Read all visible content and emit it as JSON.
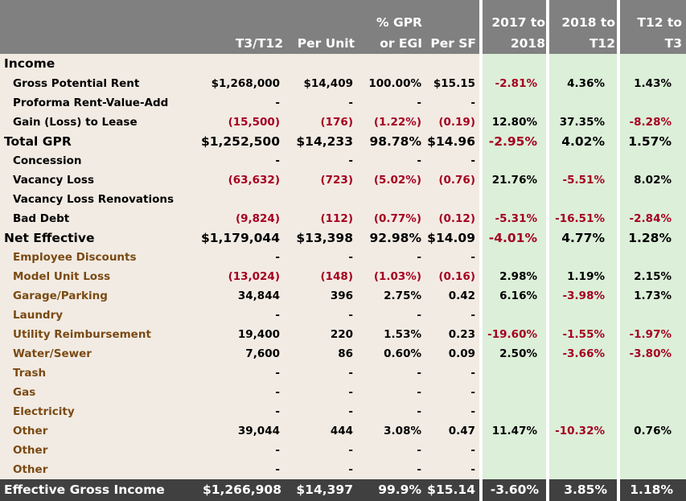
{
  "headers": {
    "col1": "T3/T12",
    "col2": "Per Unit",
    "col3_line1": "% GPR",
    "col3_line2": "or EGI",
    "col4": "Per SF",
    "col5_line1": "2017 to",
    "col5_line2": "2018",
    "col6_line1": "2018 to",
    "col6_line2": "T12",
    "col7_line1": "T12 to",
    "col7_line2": "T3"
  },
  "rows": [
    {
      "label": "Income",
      "values": [
        "",
        "",
        "",
        "",
        "",
        "",
        ""
      ]
    },
    {
      "label": "Gross Potential Rent",
      "values": [
        "$1,268,000",
        "$14,409",
        "100.00%",
        "$15.15",
        "-2.81%",
        "4.36%",
        "1.43%"
      ]
    },
    {
      "label": "Proforma Rent-Value-Add",
      "values": [
        "-",
        "-",
        "-",
        "-",
        "",
        "",
        ""
      ]
    },
    {
      "label": "Gain (Loss) to Lease",
      "values": [
        "(15,500)",
        "(176)",
        "(1.22%)",
        "(0.19)",
        "12.80%",
        "37.35%",
        "-8.28%"
      ]
    },
    {
      "label": "Total GPR",
      "values": [
        "$1,252,500",
        "$14,233",
        "98.78%",
        "$14.96",
        "-2.95%",
        "4.02%",
        "1.57%"
      ]
    },
    {
      "label": "Concession",
      "values": [
        "-",
        "-",
        "-",
        "-",
        "",
        "",
        ""
      ]
    },
    {
      "label": "Vacancy Loss",
      "values": [
        "(63,632)",
        "(723)",
        "(5.02%)",
        "(0.76)",
        "21.76%",
        "-5.51%",
        "8.02%"
      ]
    },
    {
      "label": "Vacancy Loss Renovations",
      "values": [
        "",
        "",
        "",
        "",
        "",
        "",
        ""
      ]
    },
    {
      "label": "Bad Debt",
      "values": [
        "(9,824)",
        "(112)",
        "(0.77%)",
        "(0.12)",
        "-5.31%",
        "-16.51%",
        "-2.84%"
      ]
    },
    {
      "label": "Net Effective",
      "values": [
        "$1,179,044",
        "$13,398",
        "92.98%",
        "$14.09",
        "-4.01%",
        "4.77%",
        "1.28%"
      ]
    },
    {
      "label": "Employee Discounts",
      "values": [
        "-",
        "-",
        "-",
        "-",
        "",
        "",
        ""
      ]
    },
    {
      "label": "Model Unit Loss",
      "values": [
        "(13,024)",
        "(148)",
        "(1.03%)",
        "(0.16)",
        "2.98%",
        "1.19%",
        "2.15%"
      ]
    },
    {
      "label": "Garage/Parking",
      "values": [
        "34,844",
        "396",
        "2.75%",
        "0.42",
        "6.16%",
        "-3.98%",
        "1.73%"
      ]
    },
    {
      "label": "Laundry",
      "values": [
        "-",
        "-",
        "-",
        "-",
        "",
        "",
        ""
      ]
    },
    {
      "label": "Utility Reimbursement",
      "values": [
        "19,400",
        "220",
        "1.53%",
        "0.23",
        "-19.60%",
        "-1.55%",
        "-1.97%"
      ]
    },
    {
      "label": "Water/Sewer",
      "values": [
        "7,600",
        "86",
        "0.60%",
        "0.09",
        "2.50%",
        "-3.66%",
        "-3.80%"
      ]
    },
    {
      "label": "Trash",
      "values": [
        "-",
        "-",
        "-",
        "-",
        "",
        "",
        ""
      ]
    },
    {
      "label": "Gas",
      "values": [
        "-",
        "-",
        "-",
        "-",
        "",
        "",
        ""
      ]
    },
    {
      "label": "Electricity",
      "values": [
        "-",
        "-",
        "-",
        "-",
        "",
        "",
        ""
      ]
    },
    {
      "label": "Other",
      "values": [
        "39,044",
        "444",
        "3.08%",
        "0.47",
        "11.47%",
        "-10.32%",
        "0.76%"
      ]
    },
    {
      "label": "Other",
      "values": [
        "-",
        "-",
        "-",
        "-",
        "",
        "",
        ""
      ]
    },
    {
      "label": "Other",
      "values": [
        "-",
        "-",
        "-",
        "-",
        "",
        "",
        ""
      ]
    }
  ],
  "footer": {
    "label": "Effective Gross Income",
    "values": [
      "$1,266,908",
      "$14,397",
      "99.9%",
      "$15.14",
      "-3.60%",
      "3.85%",
      "1.18%"
    ]
  },
  "colors": {
    "header_bg": "#808080",
    "left_band": "#f2ebe3",
    "green_band": "#dcefd9",
    "footer_bg": "#404040",
    "negative": "#a50021",
    "other_income_label": "#7a4a14"
  }
}
